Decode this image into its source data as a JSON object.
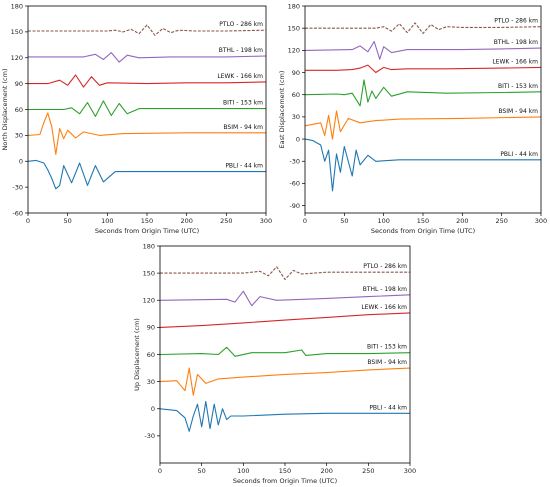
{
  "chart_data": [
    {
      "type": "line",
      "panel": "north",
      "xlabel": "Seconds from Origin Time (UTC)",
      "ylabel": "North Displacement (cm)",
      "xlim": [
        0,
        300
      ],
      "ylim": [
        -60,
        180
      ],
      "xticks": [
        0,
        50,
        100,
        150,
        200,
        250,
        300
      ],
      "yticks": [
        -60,
        -30,
        0,
        30,
        60,
        90,
        120,
        150,
        180
      ],
      "grid": false,
      "series": [
        {
          "name": "PTLO - 286 km",
          "offset": 150,
          "color": "#8c564b",
          "dashed": true,
          "x": [
            0,
            100,
            110,
            120,
            130,
            140,
            150,
            160,
            170,
            180,
            190,
            210,
            250,
            300
          ],
          "y": [
            151,
            151,
            152,
            150,
            153,
            148,
            158,
            146,
            154,
            149,
            152,
            151,
            151,
            152
          ]
        },
        {
          "name": "BTHL - 198 km",
          "offset": 120,
          "color": "#9467bd",
          "dashed": false,
          "x": [
            0,
            70,
            85,
            95,
            105,
            115,
            125,
            140,
            180,
            250,
            300
          ],
          "y": [
            121,
            121,
            124,
            118,
            126,
            115,
            123,
            120,
            121,
            121,
            122
          ]
        },
        {
          "name": "LEWK - 166 km",
          "offset": 90,
          "color": "#d62728",
          "dashed": false,
          "x": [
            0,
            25,
            40,
            50,
            60,
            70,
            80,
            90,
            100,
            150,
            200,
            250,
            300
          ],
          "y": [
            90,
            90,
            94,
            88,
            100,
            86,
            98,
            88,
            91,
            90,
            91,
            91,
            92
          ]
        },
        {
          "name": "BITI - 153 km",
          "offset": 60,
          "color": "#2ca02c",
          "dashed": false,
          "x": [
            0,
            45,
            55,
            65,
            75,
            85,
            95,
            105,
            115,
            125,
            140,
            200,
            250,
            300
          ],
          "y": [
            60,
            60,
            62,
            55,
            68,
            52,
            70,
            53,
            67,
            55,
            61,
            61,
            61,
            61
          ]
        },
        {
          "name": "BSIM - 94 km",
          "offset": 30,
          "color": "#ff7f0e",
          "dashed": false,
          "x": [
            0,
            15,
            20,
            25,
            30,
            35,
            40,
            45,
            50,
            60,
            70,
            90,
            120,
            200,
            300
          ],
          "y": [
            30,
            31,
            45,
            56,
            40,
            8,
            38,
            26,
            36,
            27,
            34,
            30,
            32,
            33,
            33
          ]
        },
        {
          "name": "PBLI - 44 km",
          "offset": 0,
          "color": "#1f77b4",
          "dashed": false,
          "x": [
            0,
            10,
            20,
            25,
            30,
            35,
            40,
            45,
            55,
            65,
            75,
            85,
            95,
            110,
            150,
            200,
            250,
            300
          ],
          "y": [
            0,
            1,
            -2,
            -10,
            -20,
            -32,
            -28,
            -5,
            -25,
            -2,
            -28,
            -5,
            -24,
            -12,
            -12,
            -12,
            -12,
            -12
          ]
        }
      ]
    },
    {
      "type": "line",
      "panel": "east",
      "xlabel": "Seconds from Origin Time (UTC)",
      "ylabel": "East Displacement (cm)",
      "xlim": [
        0,
        300
      ],
      "ylim": [
        -100,
        180
      ],
      "xticks": [
        0,
        50,
        100,
        150,
        200,
        250,
        300
      ],
      "yticks": [
        -90,
        -60,
        -30,
        0,
        30,
        60,
        90,
        120,
        150,
        180
      ],
      "grid": false,
      "series": [
        {
          "name": "PTLO - 286 km",
          "offset": 150,
          "color": "#8c564b",
          "dashed": true,
          "x": [
            0,
            90,
            100,
            110,
            120,
            130,
            140,
            150,
            160,
            170,
            180,
            200,
            250,
            300
          ],
          "y": [
            150,
            150,
            152,
            146,
            156,
            144,
            157,
            143,
            155,
            148,
            152,
            151,
            151,
            152
          ]
        },
        {
          "name": "BTHL - 198 km",
          "offset": 120,
          "color": "#9467bd",
          "dashed": false,
          "x": [
            0,
            60,
            70,
            80,
            88,
            95,
            100,
            110,
            130,
            200,
            250,
            300
          ],
          "y": [
            120,
            121,
            126,
            118,
            132,
            108,
            125,
            117,
            121,
            121,
            122,
            123
          ]
        },
        {
          "name": "LEWK - 166 km",
          "offset": 90,
          "color": "#d62728",
          "dashed": false,
          "x": [
            0,
            40,
            60,
            70,
            80,
            90,
            100,
            110,
            130,
            180,
            250,
            300
          ],
          "y": [
            93,
            93,
            94,
            96,
            100,
            90,
            97,
            94,
            95,
            95,
            96,
            97
          ]
        },
        {
          "name": "BITI - 153 km",
          "offset": 60,
          "color": "#2ca02c",
          "dashed": false,
          "x": [
            0,
            40,
            50,
            60,
            70,
            75,
            80,
            85,
            90,
            100,
            110,
            130,
            180,
            250,
            300
          ],
          "y": [
            60,
            61,
            60,
            62,
            45,
            80,
            50,
            65,
            55,
            70,
            58,
            64,
            62,
            63,
            64
          ]
        },
        {
          "name": "BSIM - 94 km",
          "offset": 30,
          "color": "#ff7f0e",
          "dashed": false,
          "x": [
            0,
            10,
            20,
            25,
            30,
            35,
            40,
            45,
            55,
            70,
            90,
            120,
            200,
            300
          ],
          "y": [
            18,
            20,
            22,
            5,
            32,
            0,
            38,
            10,
            28,
            22,
            25,
            27,
            28,
            30
          ]
        },
        {
          "name": "PBLI - 44 km",
          "offset": 0,
          "color": "#1f77b4",
          "dashed": false,
          "x": [
            0,
            10,
            20,
            25,
            30,
            35,
            40,
            45,
            50,
            60,
            65,
            70,
            80,
            90,
            120,
            200,
            300
          ],
          "y": [
            0,
            -2,
            -8,
            -30,
            -15,
            -70,
            -20,
            -45,
            -10,
            -50,
            -15,
            -35,
            -22,
            -30,
            -28,
            -28,
            -28
          ]
        }
      ]
    },
    {
      "type": "line",
      "panel": "up",
      "xlabel": "Seconds from Origin Time (UTC)",
      "ylabel": "Up Displacement (cm)",
      "xlim": [
        0,
        300
      ],
      "ylim": [
        -60,
        180
      ],
      "xticks": [
        0,
        50,
        100,
        150,
        200,
        250,
        300
      ],
      "yticks": [
        -30,
        0,
        30,
        60,
        90,
        120,
        150,
        180
      ],
      "grid": false,
      "series": [
        {
          "name": "PTLO - 286 km",
          "offset": 150,
          "color": "#8c564b",
          "dashed": true,
          "x": [
            0,
            100,
            120,
            130,
            140,
            150,
            160,
            170,
            200,
            250,
            300
          ],
          "y": [
            150,
            150,
            152,
            147,
            157,
            143,
            153,
            149,
            151,
            151,
            151
          ]
        },
        {
          "name": "BTHL - 198 km",
          "offset": 120,
          "color": "#9467bd",
          "dashed": false,
          "x": [
            0,
            80,
            90,
            100,
            110,
            120,
            140,
            200,
            250,
            300
          ],
          "y": [
            120,
            121,
            118,
            130,
            114,
            124,
            120,
            122,
            124,
            126
          ]
        },
        {
          "name": "LEWK - 166 km",
          "offset": 90,
          "color": "#d62728",
          "dashed": false,
          "x": [
            0,
            50,
            100,
            150,
            200,
            250,
            300
          ],
          "y": [
            90,
            92,
            95,
            98,
            101,
            104,
            106
          ]
        },
        {
          "name": "BITI - 153 km",
          "offset": 60,
          "color": "#2ca02c",
          "dashed": false,
          "x": [
            0,
            50,
            70,
            80,
            90,
            110,
            150,
            170,
            175,
            200,
            250,
            300
          ],
          "y": [
            60,
            61,
            60,
            68,
            58,
            62,
            62,
            65,
            59,
            61,
            61,
            62
          ]
        },
        {
          "name": "BSIM - 94 km",
          "offset": 30,
          "color": "#ff7f0e",
          "dashed": false,
          "x": [
            0,
            20,
            30,
            35,
            40,
            45,
            55,
            70,
            100,
            150,
            200,
            250,
            300
          ],
          "y": [
            30,
            31,
            20,
            45,
            15,
            38,
            28,
            33,
            35,
            38,
            40,
            43,
            45
          ]
        },
        {
          "name": "PBLI - 44 km",
          "offset": 0,
          "color": "#1f77b4",
          "dashed": false,
          "x": [
            0,
            20,
            30,
            35,
            40,
            45,
            50,
            55,
            60,
            65,
            70,
            75,
            80,
            85,
            100,
            150,
            200,
            300
          ],
          "y": [
            0,
            -2,
            -10,
            -25,
            -8,
            5,
            -20,
            8,
            -22,
            5,
            -18,
            0,
            -12,
            -8,
            -8,
            -6,
            -5,
            -5
          ]
        }
      ]
    }
  ]
}
